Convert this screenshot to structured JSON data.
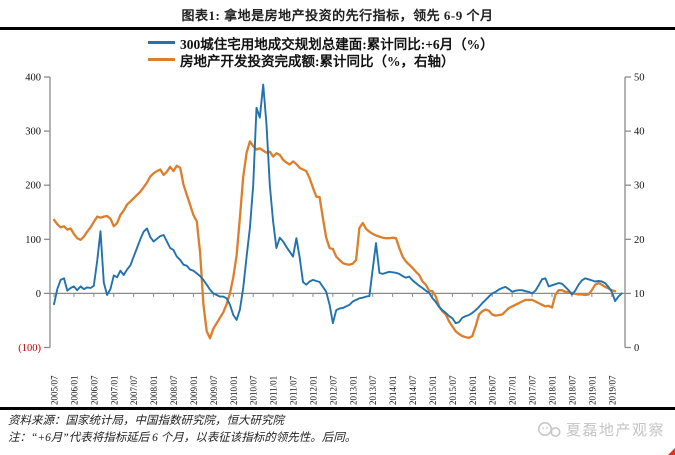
{
  "title": "图表1: 拿地是房地产投资的先行指标，领先 6-9 个月",
  "legend": [
    {
      "label": "300城住宅用地成交规划总建面:累计同比:+6月（%）",
      "color": "#2272ae"
    },
    {
      "label": "房地产开发投资完成额:累计同比（%，右轴）",
      "color": "#dd7e2b"
    }
  ],
  "footer": {
    "source": "资料来源：国家统计局，中国指数研究院，恒大研究院",
    "note": "注：“+6月”代表将指标延后 6 个月，以表征该指标的领先性。后同。",
    "watermark": "夏磊地产观察"
  },
  "chart_data": {
    "type": "line",
    "x_start": "2005/07",
    "x_interval": "monthly",
    "x_tick_labels": [
      "2005/07",
      "2006/01",
      "2006/07",
      "2007/01",
      "2007/07",
      "2008/01",
      "2008/07",
      "2009/01",
      "2009/07",
      "2010/01",
      "2010/07",
      "2011/01",
      "2011/07",
      "2012/01",
      "2012/07",
      "2013/01",
      "2013/07",
      "2014/01",
      "2014/07",
      "2015/01",
      "2015/07",
      "2016/01",
      "2016/07",
      "2017/01",
      "2017/07",
      "2018/01",
      "2018/07",
      "2019/01",
      "2019/07"
    ],
    "grid": false,
    "legend_position": "top",
    "axis_color": "#8a8a8a",
    "y_left": {
      "ticks": [
        "400",
        "300",
        "200",
        "100",
        "0",
        "(100)"
      ],
      "values": [
        400,
        300,
        200,
        100,
        0,
        -100
      ],
      "range": [
        -100,
        400
      ],
      "negative_color": "#c00000"
    },
    "y_right": {
      "ticks": [
        "50",
        "40",
        "30",
        "20",
        "10",
        "0"
      ],
      "values": [
        50,
        40,
        30,
        20,
        10,
        0
      ],
      "range": [
        0,
        50
      ]
    },
    "series": [
      {
        "name": "300城住宅用地成交规划总建面:累计同比:+6月（%）",
        "axis": "left",
        "color": "#2272ae",
        "values": [
          -20,
          8,
          25,
          28,
          5,
          10,
          13,
          6,
          13,
          8,
          11,
          10,
          14,
          60,
          115,
          20,
          -3,
          8,
          33,
          30,
          42,
          34,
          44,
          52,
          68,
          84,
          100,
          114,
          120,
          104,
          96,
          101,
          106,
          108,
          96,
          84,
          80,
          68,
          62,
          53,
          51,
          44,
          42,
          37,
          32,
          25,
          16,
          7,
          0,
          -3,
          -6,
          -6,
          -9,
          -21,
          -40,
          -49,
          -30,
          10,
          68,
          121,
          200,
          343,
          325,
          386,
          312,
          200,
          133,
          84,
          103,
          96,
          86,
          77,
          68,
          102,
          66,
          21,
          16,
          22,
          25,
          23,
          21,
          12,
          3,
          -21,
          -55,
          -31,
          -28,
          -27,
          -24,
          -21,
          -15,
          -12,
          -9,
          -8,
          -6,
          -5,
          45,
          93,
          38,
          36,
          38,
          40,
          39,
          38,
          36,
          32,
          29,
          31,
          24,
          19,
          14,
          10,
          5,
          1,
          -9,
          -16,
          -25,
          -31,
          -36,
          -42,
          -46,
          -55,
          -53,
          -45,
          -42,
          -40,
          -36,
          -31,
          -25,
          -18,
          -12,
          -6,
          0,
          3,
          7,
          10,
          12,
          8,
          3,
          5,
          6,
          6,
          4,
          3,
          0,
          5,
          15,
          26,
          28,
          13,
          15,
          17,
          19,
          18,
          12,
          6,
          -2,
          5,
          16,
          24,
          28,
          26,
          24,
          22,
          23,
          22,
          19,
          12,
          3,
          -14,
          -6,
          0
        ]
      },
      {
        "name": "房地产开发投资完成额:累计同比（%，右轴）",
        "axis": "right",
        "color": "#dd7e2b",
        "values": [
          23.6,
          22.8,
          22.2,
          22.4,
          21.8,
          22,
          21,
          20.2,
          19.9,
          20.5,
          21.4,
          22.2,
          23.2,
          24.2,
          24,
          24.2,
          24.3,
          23.8,
          22.4,
          23,
          24.5,
          25.3,
          26.4,
          27,
          27.6,
          28.2,
          28.8,
          29.6,
          30.5,
          31.6,
          32.2,
          32.6,
          32.9,
          31.9,
          32.5,
          33.4,
          32.6,
          33.6,
          33.2,
          30.1,
          28.2,
          26.4,
          24.5,
          23.3,
          17.5,
          8,
          3,
          1.7,
          3.5,
          4.5,
          5.5,
          6.5,
          8,
          10,
          13,
          17,
          24,
          31.5,
          36,
          38.1,
          37.2,
          36.6,
          36.8,
          36.4,
          36,
          36.2,
          35.3,
          35.9,
          35.6,
          34.7,
          34.2,
          33.8,
          34.4,
          33.9,
          33.2,
          32.9,
          32.6,
          31.3,
          29.5,
          27.9,
          27.8,
          23.9,
          20.3,
          18.4,
          18.2,
          16.8,
          16.2,
          15.6,
          15.4,
          15.3,
          15.5,
          16.2,
          22.1,
          23,
          21.9,
          21.4,
          21,
          20.7,
          20.5,
          20.3,
          20.2,
          20.2,
          20.3,
          20.2,
          18.4,
          16.8,
          15.9,
          15.3,
          14.7,
          14,
          13.4,
          12.2,
          11.6,
          10.5,
          10.4,
          9.4,
          7.6,
          6.7,
          6.1,
          4.8,
          3.9,
          3,
          2.5,
          2.1,
          1.9,
          1.8,
          2.1,
          3.9,
          6.1,
          6.7,
          7,
          6.8,
          6.1,
          5.9,
          6,
          6.1,
          6.7,
          7.3,
          7.6,
          7.9,
          8.2,
          8.5,
          8.8,
          8.8,
          8.8,
          8.5,
          8.2,
          7.9,
          7.6,
          7.7,
          7.4,
          9.7,
          10.6,
          10.6,
          10.3,
          10.2,
          10.1,
          9.9,
          9.8,
          9.8,
          9.7,
          9.8,
          10.6,
          11.6,
          11.9,
          11.6,
          11.2,
          10.9,
          10.6,
          10.4,
          null,
          null
        ]
      }
    ]
  }
}
